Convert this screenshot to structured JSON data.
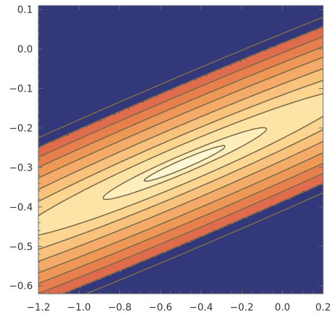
{
  "chart_data": {
    "type": "contour",
    "title": "",
    "xlabel": "",
    "ylabel": "",
    "xlim": [
      -1.2,
      0.2
    ],
    "ylim": [
      -0.62,
      0.11
    ],
    "xticks": [
      -1.2,
      -1.0,
      -0.8,
      -0.6,
      -0.4,
      -0.2,
      0.0,
      0.2
    ],
    "xtick_labels": [
      "-1.2",
      "-1.0",
      "-0.8",
      "-0.6",
      "-0.4",
      "-0.2",
      "0.0",
      "0.2"
    ],
    "yticks": [
      -0.6,
      -0.5,
      -0.4,
      -0.3,
      -0.2,
      -0.1,
      0.0,
      0.1
    ],
    "ytick_labels": [
      "-0.6",
      "-0.5",
      "-0.4",
      "-0.3",
      "-0.2",
      "-0.1",
      "0.0",
      "0.1"
    ],
    "minimum": {
      "x": -0.48,
      "y": -0.29
    },
    "levels": [
      0.003,
      0.012,
      0.05,
      0.11,
      0.2,
      0.32,
      0.46,
      0.62,
      0.8,
      1.0
    ],
    "colors": {
      "fills": [
        "#fef7d6",
        "#fdeebb",
        "#fde4a6",
        "#fcd590",
        "#f8c27c",
        "#f4ab69",
        "#ee9858",
        "#e8804e",
        "#de6c4d"
      ],
      "outside": "#33387a",
      "contour_line": "#7a6b4a",
      "axis": "#6b6b6b"
    },
    "grid": false,
    "legend": "none"
  }
}
